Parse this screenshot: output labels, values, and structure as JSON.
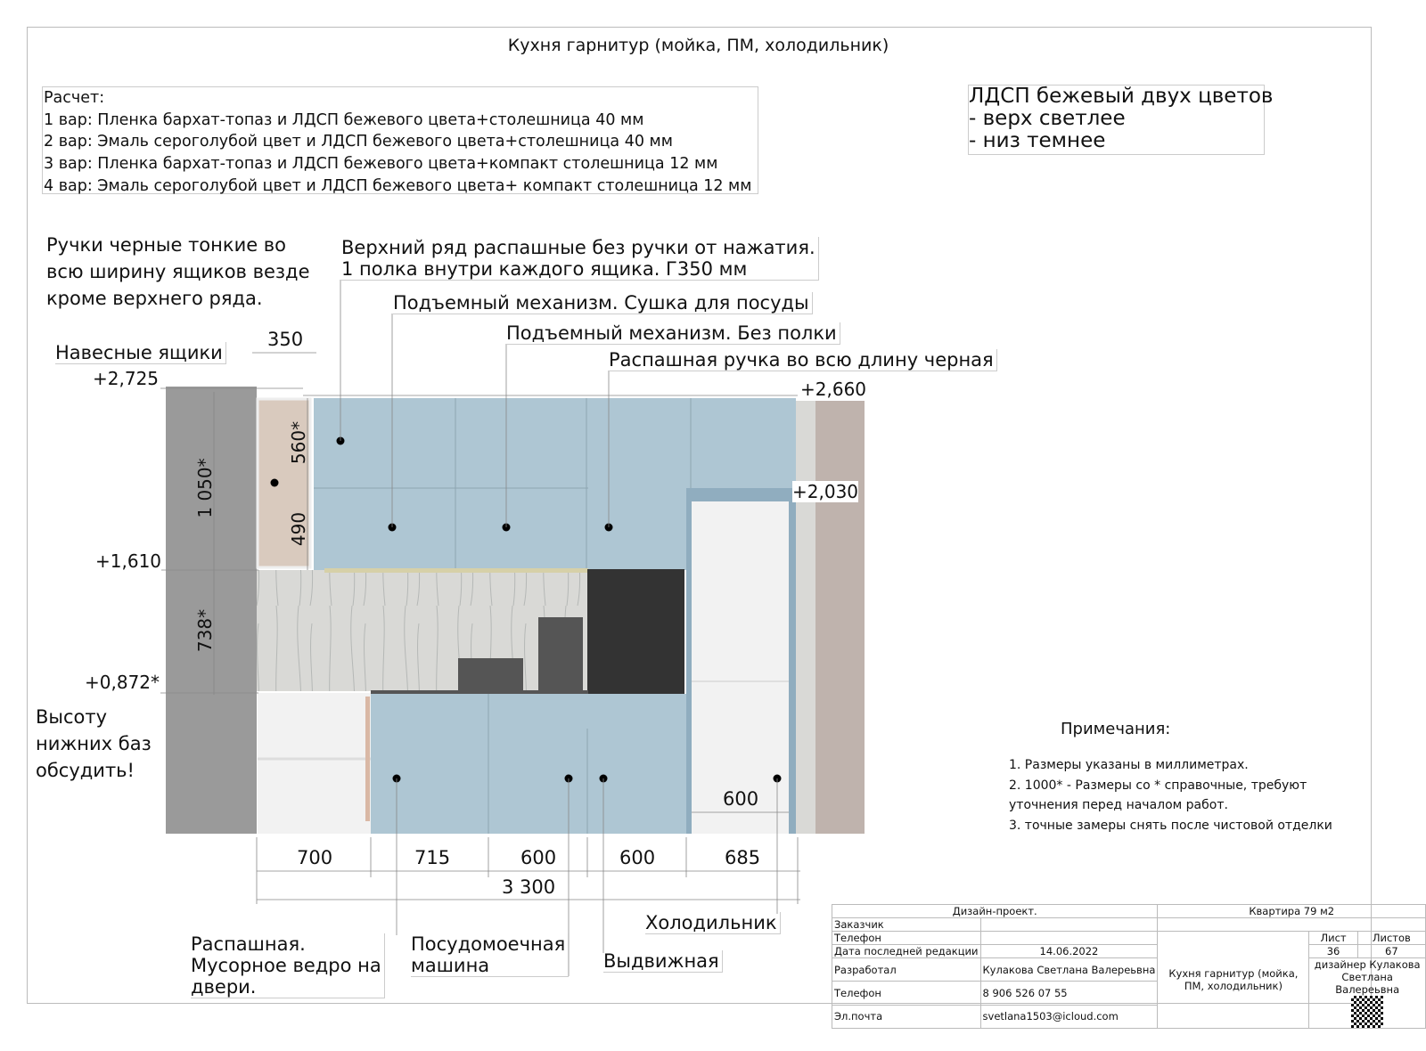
{
  "title": "Кухня гарнитур (мойка, ПМ, холодильник)",
  "calc": {
    "heading": "Расчет:",
    "lines": [
      "1 вар: Пленка бархат-топаз и ЛДСП бежевого цвета+столешница 40 мм",
      "2 вар: Эмаль серо­голубой цвет и ЛДСП бежевого цвета+столешница 40 мм",
      "3 вар: Пленка бархат-топаз и ЛДСП бежевого цвета+компакт столешница 12 мм",
      "4 вар: Эмаль серо­голубой цвет и ЛДСП бежевого цвета+ компакт столешница 12 мм"
    ]
  },
  "color_note": [
    "ЛДСП бежевый двух цветов",
    "- верх светлее",
    "- низ темнее"
  ],
  "handles_note": [
    "Ручки черные тонкие во",
    "всю ширину ящиков везде",
    "кроме верхнего ряда."
  ],
  "callouts": {
    "upper_row": [
      "Верхний ряд распашные без ручки от нажатия.",
      "1 полка внутри каждого ящика. Г350 мм"
    ],
    "lift_dryer": "Подъемный механизм. Сушка для посуды",
    "lift_no_shelf": "Подъемный механизм. Без полки",
    "swing_handle": "Распашная ручка во всю длину черная",
    "wall_cabinets": "Навесные ящики",
    "base_height": [
      "Высоту",
      "нижних баз",
      "обсудить!"
    ],
    "swing_bin": [
      "Распашная.",
      "Мусорное ведро на",
      "двери."
    ],
    "dishwasher": [
      "Посудомоечная",
      "машина"
    ],
    "drawer": "Выдвижная",
    "fridge": "Холодильник"
  },
  "levels": {
    "l2725": "+2,725",
    "l2660": "+2,660",
    "l2030": "+2,030",
    "l1610": "+1,610",
    "l0872": "+0,872*"
  },
  "dims": {
    "d350": "350",
    "d1050": "1 050*",
    "d738": "738*",
    "d560": "560*",
    "d490": "490",
    "d700": "700",
    "d715": "715",
    "d600a": "600",
    "d600b": "600",
    "d685": "685",
    "d3300": "3 300",
    "d600c": "600"
  },
  "notes": {
    "heading": "Примечания:",
    "items": [
      "1. Размеры указаны в миллиметрах.",
      "2. 1000* - Размеры со * справочные, требуют",
      "уточнения перед началом работ.",
      "3. точные замеры снять после чистовой отделки"
    ]
  },
  "title_block": {
    "design_project": "Дизайн-проект.",
    "apartment": "Квартира 79 м2",
    "customer_label": "Заказчик",
    "phone_label": "Телефон",
    "last_edit_label": "Дата последней редакции",
    "last_edit_date": "14.06.2022",
    "developer_label": "Разработал",
    "developer": "Кулакова Светлана Валереьвна",
    "phone2_label": "Телефон",
    "phone": "8 906 526 07 55",
    "email_label": "Эл.почта",
    "email": "svetlana1503@icloud.com",
    "sheet_title": "Кухня гарнитур (мойка, ПМ, холодильник)",
    "sheet_label": "Лист",
    "sheet": "36",
    "sheets_label": "Листов",
    "sheets": "67",
    "designer": "дизайнер Кулакова Светлана Валереьвна",
    "qr_icon": "qr-code-icon"
  },
  "colors": {
    "facade_blue": "#aec6d3",
    "wall_grey": "#9a9a9a",
    "beige_upper": "#d9cabe",
    "tall_black": "#333333",
    "fridge_white": "#f2f2f2",
    "right_wall": "#bfb3ad"
  }
}
